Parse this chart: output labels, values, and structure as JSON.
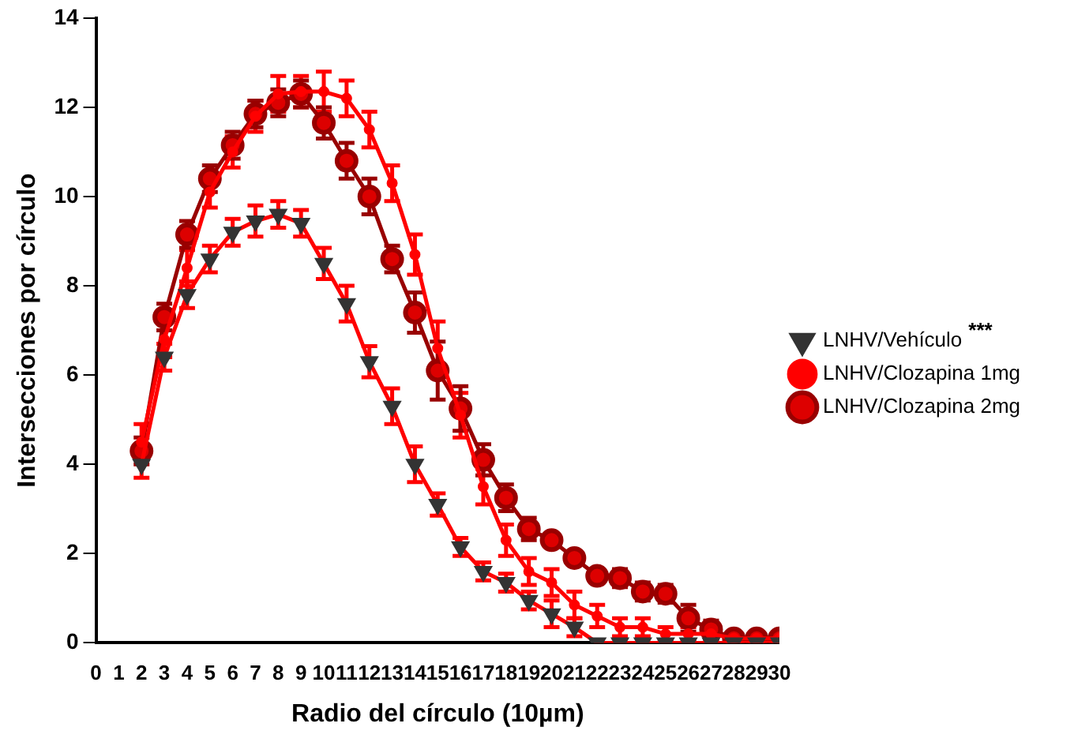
{
  "chart_data": {
    "type": "line",
    "xlabel": "Radio del círculo (10µm)",
    "ylabel": "Intersecciones por círculo",
    "x": [
      2,
      3,
      4,
      5,
      6,
      7,
      8,
      9,
      10,
      11,
      12,
      13,
      14,
      15,
      16,
      17,
      18,
      19,
      20,
      21,
      22,
      23,
      24,
      25,
      26,
      27,
      28,
      29,
      30
    ],
    "xlim": [
      0,
      30
    ],
    "xticks": [
      0,
      1,
      2,
      3,
      4,
      5,
      6,
      7,
      8,
      9,
      10,
      11,
      12,
      13,
      14,
      15,
      16,
      17,
      18,
      19,
      20,
      21,
      22,
      23,
      24,
      25,
      26,
      27,
      28,
      29,
      30
    ],
    "ylim": [
      0,
      14
    ],
    "yticks": [
      0,
      2,
      4,
      6,
      8,
      10,
      12,
      14
    ],
    "grid": false,
    "legend": "right",
    "annotations": [
      "***"
    ],
    "series": [
      {
        "name": "LNHV/Vehículo",
        "color": "#ff0000",
        "marker": "triangle",
        "colors": [
          "#333333",
          "#333333",
          "#333333",
          "#333333",
          "#333333",
          "#333333",
          "#333333",
          "#333333",
          "#333333",
          "#333333",
          "#333333",
          "#333333",
          "#333333",
          "#333333",
          "#333333",
          "#333333",
          "#333333",
          "#333333",
          "#333333",
          "#333333",
          "#333333",
          "#333333",
          "#333333",
          "#333333",
          "#333333",
          "#333333",
          "#333333",
          "#333333",
          "#333333"
        ],
        "values": [
          4.0,
          6.4,
          7.8,
          8.6,
          9.2,
          9.45,
          9.6,
          9.4,
          8.5,
          7.6,
          6.3,
          5.3,
          4.0,
          3.1,
          2.15,
          1.6,
          1.35,
          0.95,
          0.65,
          0.35,
          0,
          0,
          0,
          0,
          0,
          0,
          0,
          0,
          0
        ],
        "errors": [
          0.3,
          0.3,
          0.3,
          0.3,
          0.3,
          0.35,
          0.3,
          0.3,
          0.35,
          0.4,
          0.35,
          0.4,
          0.4,
          0.25,
          0.2,
          0.2,
          0.2,
          0.2,
          0.3,
          0.2,
          null,
          null,
          null,
          null,
          null,
          null,
          null,
          null,
          null
        ]
      },
      {
        "name": "LNHV/Clozapina 1mg",
        "color": "#ff0000",
        "marker": "circle",
        "values": [
          4.5,
          6.8,
          8.4,
          10.1,
          11.0,
          11.8,
          12.3,
          12.35,
          12.35,
          12.2,
          11.5,
          10.3,
          8.7,
          6.6,
          5.1,
          3.5,
          2.3,
          1.6,
          1.35,
          0.85,
          0.6,
          0.35,
          0.35,
          0.2,
          0.2,
          0.2,
          0.1,
          0.1,
          0.1
        ],
        "errors": [
          0.4,
          0.4,
          0.4,
          0.35,
          0.35,
          0.35,
          0.4,
          0.35,
          0.45,
          0.4,
          0.4,
          0.4,
          0.45,
          0.6,
          0.5,
          0.4,
          0.35,
          0.3,
          0.3,
          0.3,
          0.25,
          0.2,
          0.2,
          0.15,
          0.15,
          0.15,
          null,
          null,
          null
        ]
      },
      {
        "name": "LNHV/Clozapina 2mg",
        "color": "#990000",
        "marker": "circle",
        "values": [
          4.3,
          7.3,
          9.15,
          10.4,
          11.15,
          11.85,
          12.1,
          12.3,
          11.65,
          10.8,
          10.0,
          8.6,
          7.4,
          6.1,
          5.25,
          4.1,
          3.25,
          2.55,
          2.3,
          1.9,
          1.5,
          1.45,
          1.15,
          1.1,
          0.55,
          0.3,
          0.1,
          0.1,
          0.1
        ],
        "errors": [
          0.3,
          0.3,
          0.3,
          0.3,
          0.3,
          0.3,
          0.3,
          0.3,
          0.35,
          0.4,
          0.4,
          0.3,
          0.45,
          0.65,
          0.5,
          0.35,
          0.3,
          0.25,
          null,
          null,
          null,
          0.2,
          0.2,
          0.2,
          0.3,
          0.2,
          null,
          null,
          null
        ]
      }
    ]
  }
}
